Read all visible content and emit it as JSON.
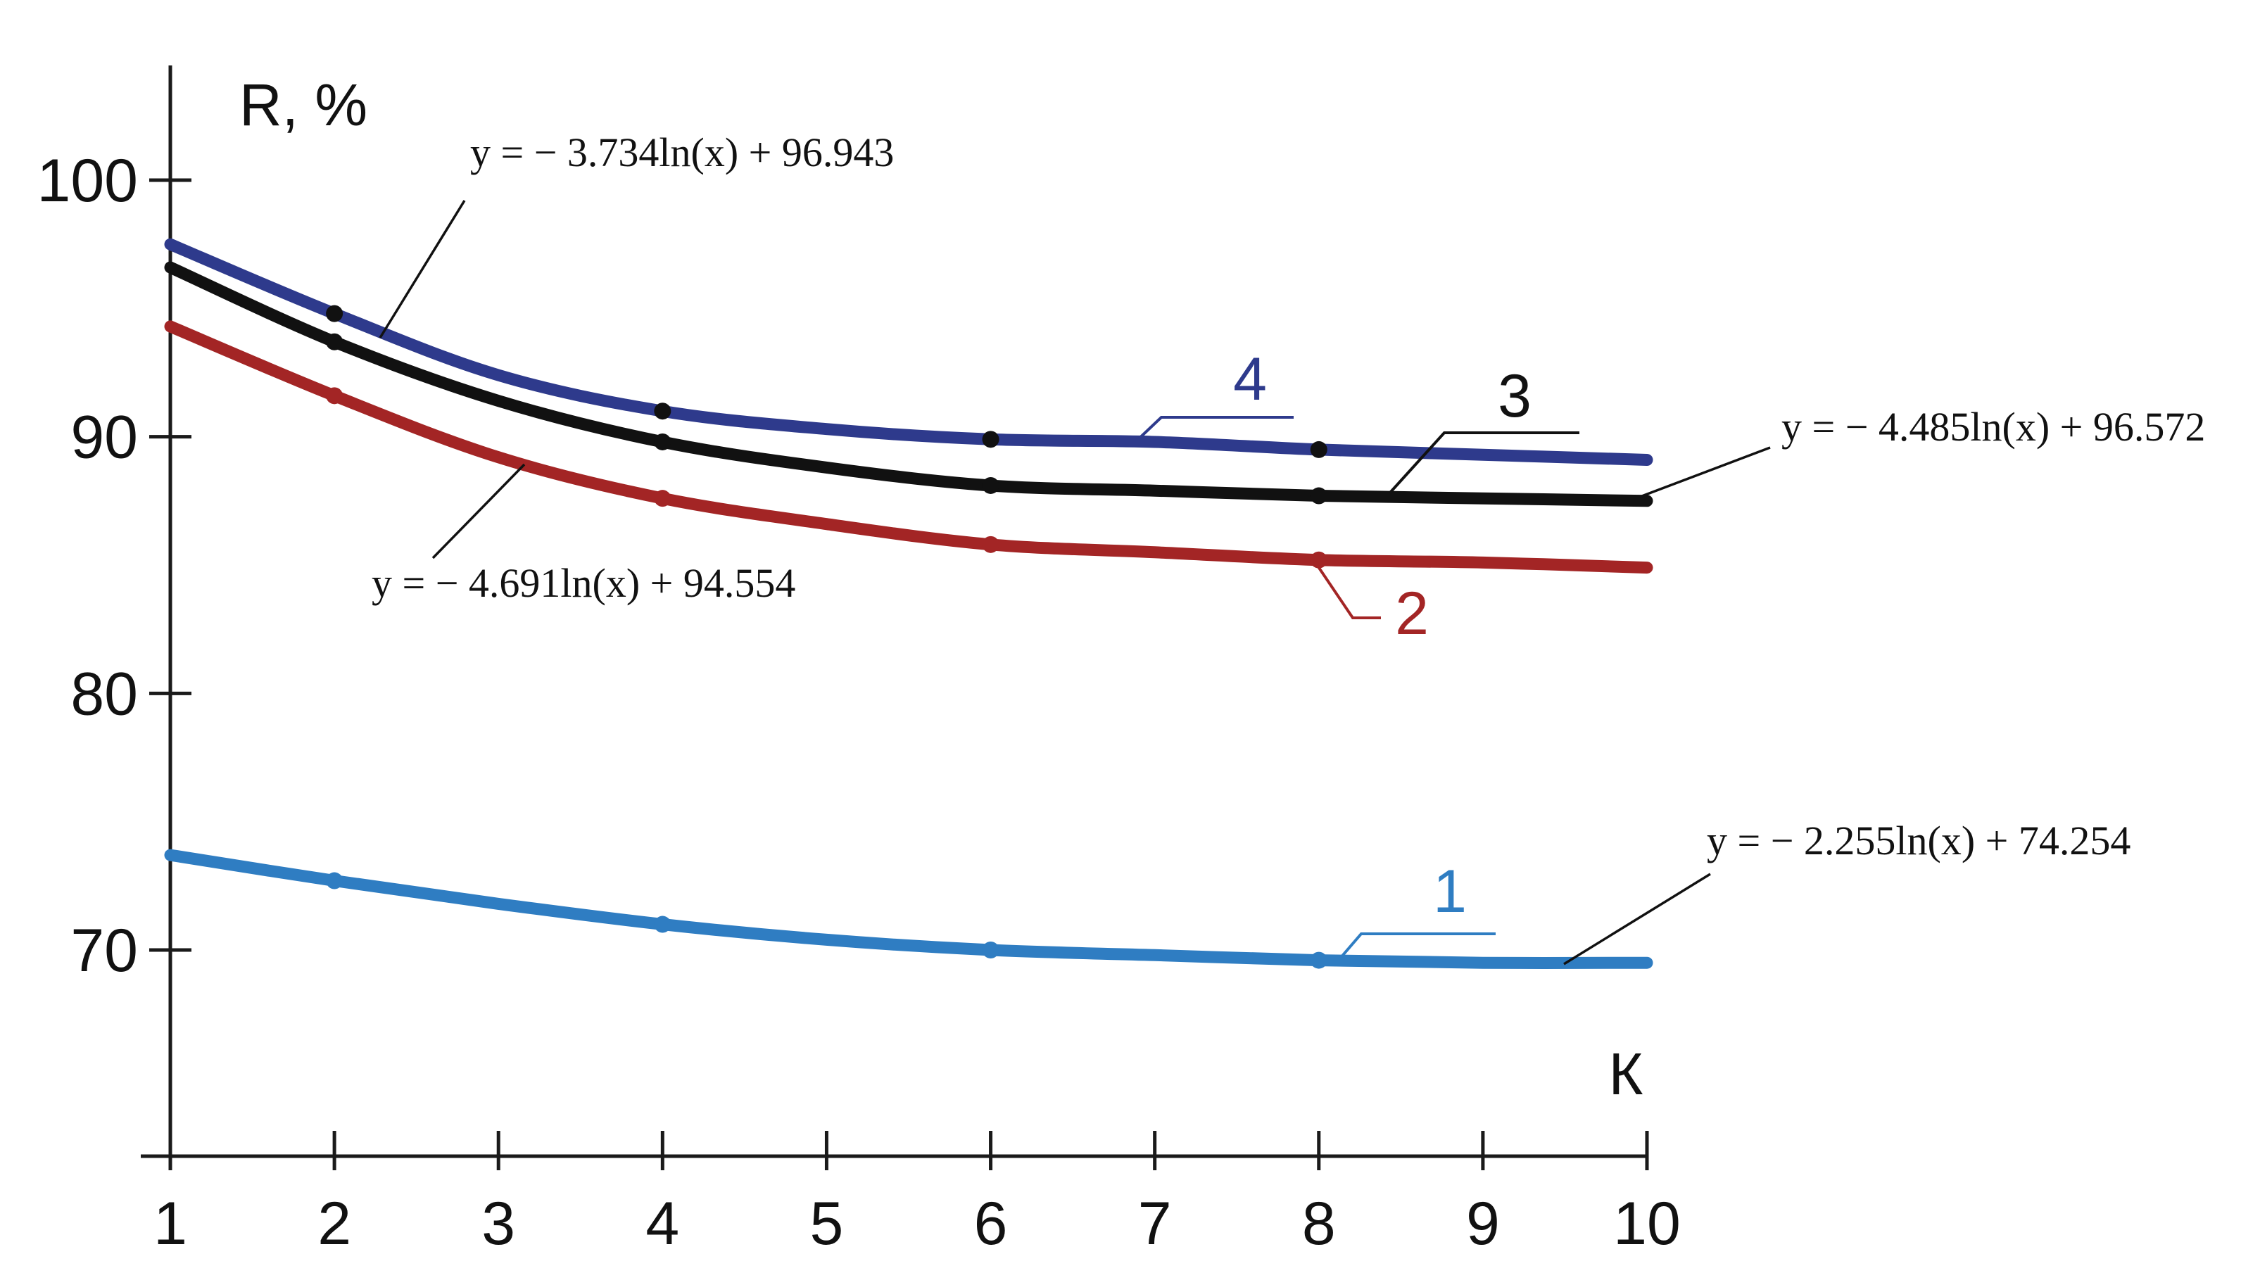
{
  "chart_data": {
    "type": "line",
    "title": "",
    "xlabel": "К",
    "ylabel": "R, %",
    "xlim": [
      1,
      10
    ],
    "ylim": [
      62,
      105
    ],
    "x_ticks": [
      "1",
      "2",
      "3",
      "4",
      "5",
      "6",
      "7",
      "8",
      "9",
      "10"
    ],
    "y_ticks": [
      "70",
      "80",
      "90",
      "100"
    ],
    "grid": false,
    "series": [
      {
        "name": "1",
        "color": "#2f7dc2",
        "marker_x": [
          2,
          4,
          6,
          8
        ],
        "x": [
          1,
          2,
          3,
          4,
          5,
          6,
          7,
          8,
          9,
          10
        ],
        "values": [
          73.7,
          72.7,
          71.8,
          71.0,
          70.4,
          70.0,
          69.8,
          69.6,
          69.5,
          69.5
        ],
        "equation": "y = − 2.255ln(x) + 74.254"
      },
      {
        "name": "2",
        "color": "#a32525",
        "marker_x": [
          2,
          4,
          6,
          8
        ],
        "x": [
          1,
          2,
          3,
          4,
          5,
          6,
          7,
          8,
          9,
          10
        ],
        "values": [
          94.3,
          91.6,
          89.2,
          87.6,
          86.6,
          85.8,
          85.5,
          85.2,
          85.1,
          84.9
        ],
        "equation": "y = − 4.691ln(x) + 94.554"
      },
      {
        "name": "3",
        "color": "#111111",
        "marker_x": [
          2,
          4,
          6,
          8
        ],
        "x": [
          1,
          2,
          3,
          4,
          5,
          6,
          7,
          8,
          9,
          10
        ],
        "values": [
          96.6,
          93.7,
          91.4,
          89.8,
          88.8,
          88.1,
          87.9,
          87.7,
          87.6,
          87.5
        ],
        "equation": "y = − 4.485ln(x) + 96.572"
      },
      {
        "name": "4",
        "color": "#2e3a8c",
        "marker_x": [
          2,
          4,
          6,
          8
        ],
        "x": [
          1,
          2,
          3,
          4,
          5,
          6,
          7,
          8,
          9,
          10
        ],
        "values": [
          97.5,
          94.8,
          92.4,
          91.0,
          90.3,
          89.9,
          89.8,
          89.5,
          89.3,
          89.1
        ],
        "equation": "y = − 3.734ln(x) + 96.943"
      }
    ]
  }
}
